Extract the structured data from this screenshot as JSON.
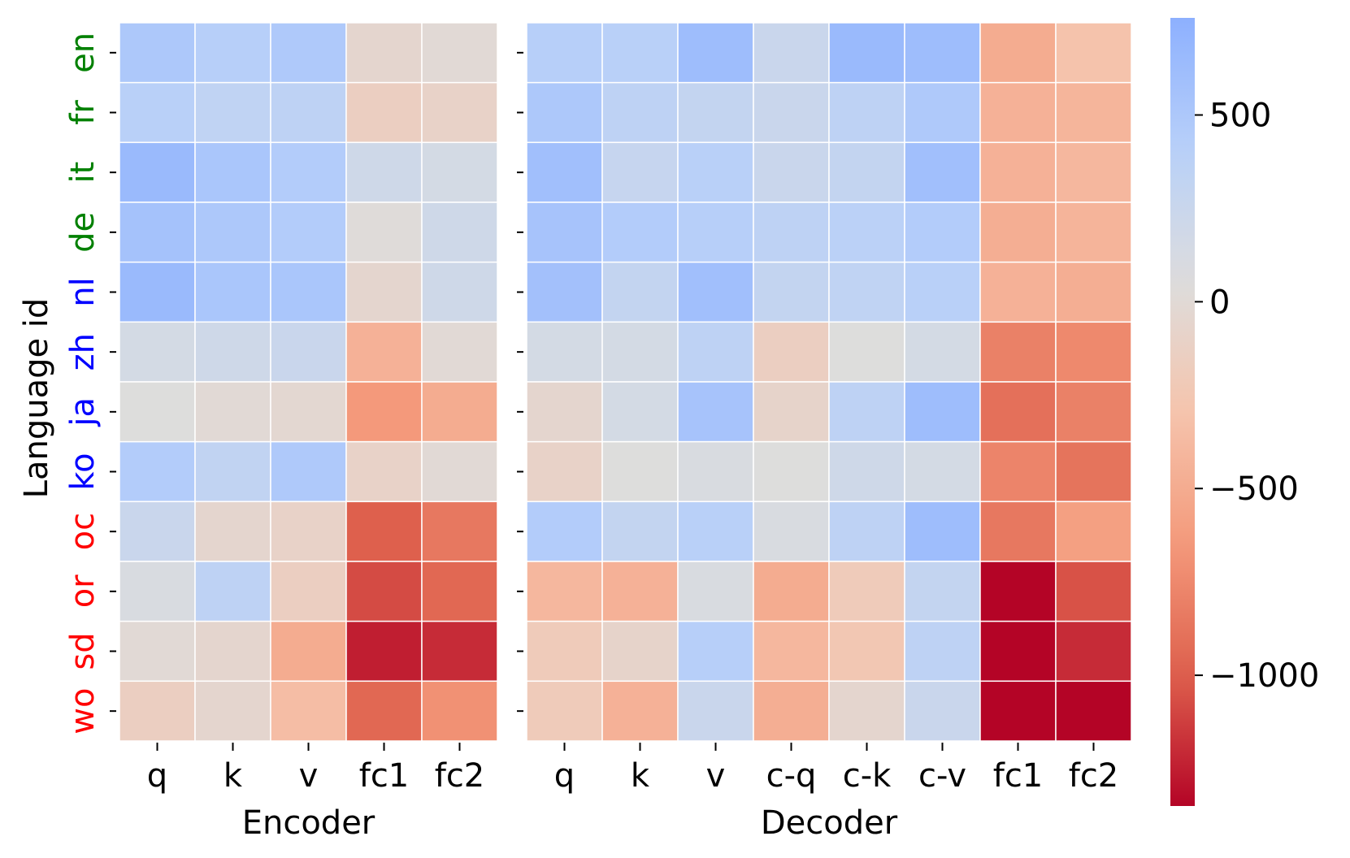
{
  "chart_data": {
    "type": "heatmap",
    "ylabel": "Language id",
    "rows": [
      "en",
      "fr",
      "it",
      "de",
      "nl",
      "zh",
      "ja",
      "ko",
      "oc",
      "or",
      "sd",
      "wo"
    ],
    "row_label_colors": [
      "#008000",
      "#008000",
      "#008000",
      "#008000",
      "#0000ff",
      "#0000ff",
      "#0000ff",
      "#0000ff",
      "#ff0000",
      "#ff0000",
      "#ff0000",
      "#ff0000"
    ],
    "colormap": "coolwarm",
    "vmin": -1350,
    "vmax": 760,
    "colorbar_ticks": [
      500,
      0,
      -500,
      -1000
    ],
    "colorbar_tick_labels": [
      "500",
      "0",
      "−500",
      "−1000"
    ],
    "panels": [
      {
        "xlabel": "Encoder",
        "columns": [
          "q",
          "k",
          "v",
          "fc1",
          "fc2"
        ],
        "values": [
          [
            500,
            420,
            480,
            -50,
            0
          ],
          [
            400,
            330,
            350,
            -150,
            -100
          ],
          [
            650,
            520,
            450,
            200,
            150
          ],
          [
            560,
            500,
            450,
            30,
            200
          ],
          [
            650,
            520,
            520,
            -50,
            200
          ],
          [
            150,
            200,
            250,
            -450,
            0
          ],
          [
            50,
            0,
            -30,
            -650,
            -500
          ],
          [
            450,
            320,
            480,
            -100,
            0
          ],
          [
            250,
            -50,
            -100,
            -1000,
            -850
          ],
          [
            100,
            350,
            -150,
            -1080,
            -950
          ],
          [
            0,
            -50,
            -500,
            -1250,
            -1200
          ],
          [
            -150,
            -50,
            -350,
            -950,
            -700
          ]
        ]
      },
      {
        "xlabel": "Decoder",
        "columns": [
          "q",
          "k",
          "v",
          "c-q",
          "c-k",
          "c-v",
          "fc1",
          "fc2"
        ],
        "values": [
          [
            420,
            400,
            620,
            250,
            650,
            620,
            -500,
            -300
          ],
          [
            500,
            350,
            300,
            250,
            350,
            480,
            -450,
            -420
          ],
          [
            600,
            280,
            400,
            250,
            300,
            600,
            -450,
            -400
          ],
          [
            550,
            450,
            420,
            350,
            380,
            450,
            -480,
            -430
          ],
          [
            580,
            300,
            600,
            300,
            330,
            400,
            -450,
            -480
          ],
          [
            150,
            150,
            350,
            -150,
            50,
            150,
            -800,
            -750
          ],
          [
            -50,
            150,
            550,
            -80,
            350,
            620,
            -900,
            -800
          ],
          [
            -100,
            50,
            100,
            50,
            200,
            150,
            -780,
            -880
          ],
          [
            450,
            300,
            400,
            100,
            350,
            620,
            -850,
            -600
          ],
          [
            -400,
            -450,
            100,
            -500,
            -200,
            300,
            -1400,
            -1050
          ],
          [
            -200,
            -80,
            420,
            -400,
            -250,
            350,
            -1400,
            -1200
          ],
          [
            -200,
            -450,
            250,
            -480,
            -50,
            250,
            -1400,
            -1400
          ]
        ]
      }
    ]
  }
}
